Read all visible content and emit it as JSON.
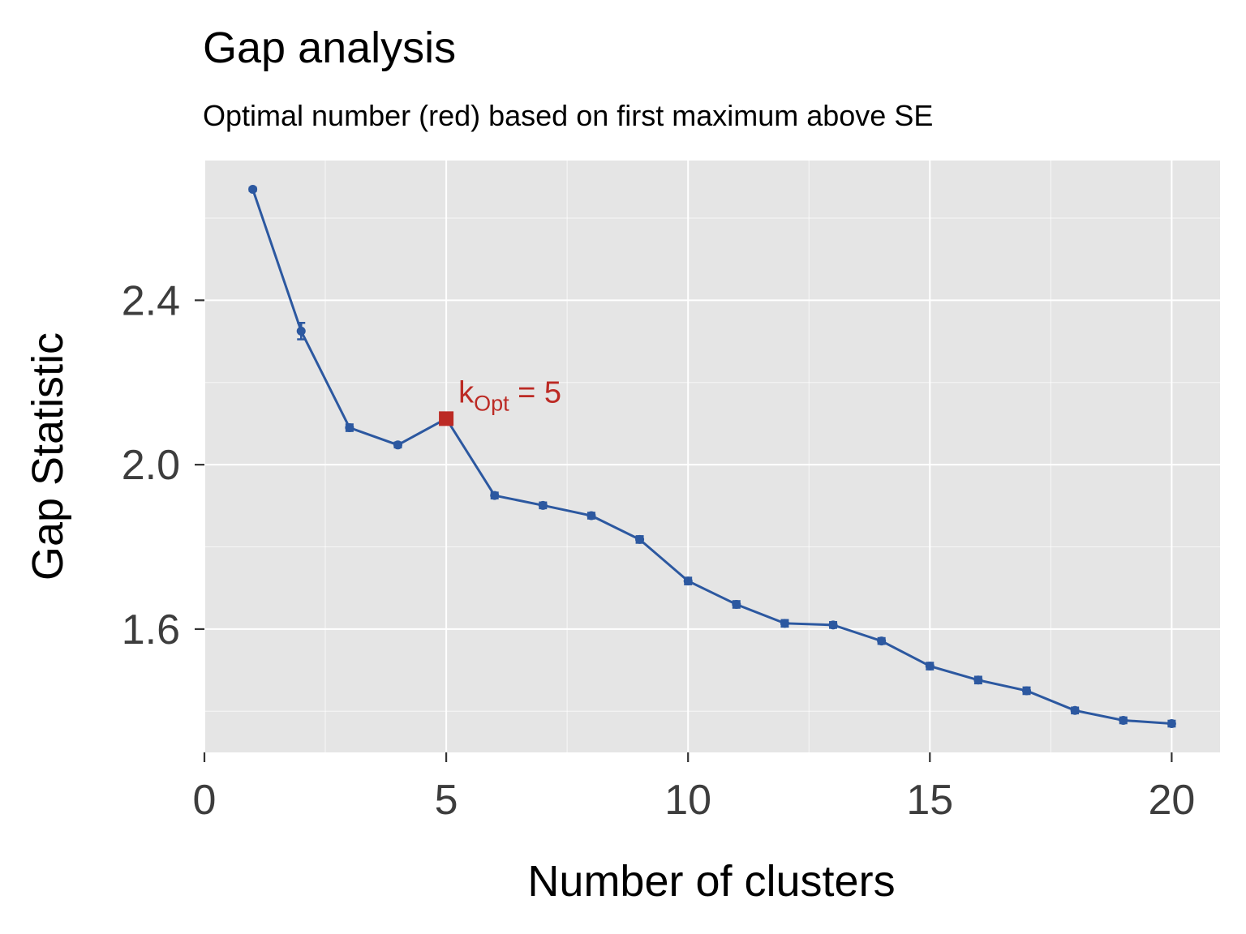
{
  "chart_data": {
    "type": "line",
    "title": "Gap analysis",
    "subtitle": "Optimal number (red) based on first maximum above SE",
    "xlabel": "Number of clusters",
    "ylabel": "Gap Statistic",
    "xlim": [
      0,
      21
    ],
    "ylim": [
      1.3,
      2.74
    ],
    "x_ticks": [
      0,
      5,
      10,
      15,
      20
    ],
    "x_tick_labels": [
      "0",
      "5",
      "10",
      "15",
      "20"
    ],
    "y_ticks": [
      1.6,
      2.0,
      2.4
    ],
    "y_tick_labels": [
      "1.6",
      "2.0",
      "2.4"
    ],
    "grid": true,
    "series": [
      {
        "x": [
          1,
          2,
          3,
          4,
          5,
          6,
          7,
          8,
          9,
          10,
          11,
          12,
          13,
          14,
          15,
          16,
          17,
          18,
          19,
          20
        ],
        "y": [
          2.67,
          2.325,
          2.09,
          2.048,
          2.112,
          1.925,
          1.901,
          1.876,
          1.818,
          1.717,
          1.66,
          1.614,
          1.61,
          1.571,
          1.51,
          1.476,
          1.45,
          1.402,
          1.378,
          1.37
        ],
        "se": [
          0.004,
          0.02,
          0.008,
          0.006,
          0.008,
          0.007,
          0.007,
          0.007,
          0.008,
          0.008,
          0.008,
          0.008,
          0.007,
          0.007,
          0.008,
          0.008,
          0.008,
          0.007,
          0.007,
          0.007
        ]
      }
    ],
    "optimal": {
      "x": 5,
      "y": 2.112,
      "label_main": "k",
      "label_sub": "Opt",
      "label_rest": " = 5"
    },
    "colors": {
      "panel": "#e5e5e5",
      "grid": "#ffffff",
      "line": "#2c58a0",
      "optimal": "#bc2a24",
      "tick": "#3d3d3d"
    }
  }
}
